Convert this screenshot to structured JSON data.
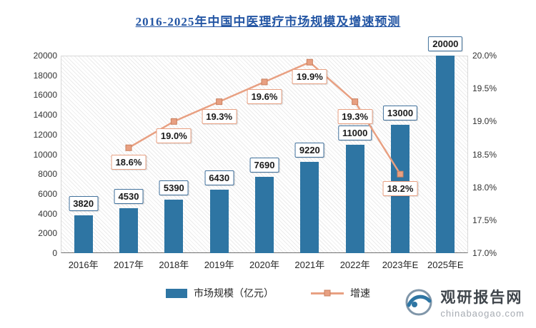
{
  "title": "2016-2025年中国中医理疗市场规模及增速预测",
  "chart_data": {
    "type": "bar",
    "subtype": "bar+line combo, dual axis",
    "categories": [
      "2016年",
      "2017年",
      "2018年",
      "2019年",
      "2020年",
      "2021年",
      "2022年",
      "2023年E",
      "2025年E"
    ],
    "series": [
      {
        "name": "市场规模（亿元）",
        "type": "bar",
        "axis": "left",
        "color": "#2e75a3",
        "values": [
          3820,
          4530,
          5390,
          6430,
          7690,
          9220,
          11000,
          13000,
          20000
        ]
      },
      {
        "name": "增速",
        "type": "line",
        "axis": "right",
        "color": "#e8a082",
        "x_indices": [
          1,
          2,
          3,
          4,
          5,
          6,
          7
        ],
        "values": [
          18.6,
          19.0,
          19.3,
          19.6,
          19.9,
          19.3,
          18.2
        ]
      }
    ],
    "bar_labels": [
      "3820",
      "4530",
      "5390",
      "6430",
      "7690",
      "9220",
      "11000",
      "13000",
      "20000"
    ],
    "line_labels": [
      "18.6%",
      "19.0%",
      "19.3%",
      "19.6%",
      "19.9%",
      "19.3%",
      "18.2%"
    ],
    "left_axis": {
      "min": 0,
      "max": 20000,
      "step": 2000,
      "ticks": [
        "0",
        "2000",
        "4000",
        "6000",
        "8000",
        "10000",
        "12000",
        "14000",
        "16000",
        "18000",
        "20000"
      ]
    },
    "right_axis": {
      "min": 17.0,
      "max": 20.0,
      "step": 0.5,
      "ticks": [
        "17.0%",
        "17.5%",
        "18.0%",
        "18.5%",
        "19.0%",
        "19.5%",
        "20.0%"
      ]
    },
    "legend_position": "bottom",
    "grid": false
  },
  "watermark": {
    "name": "观研报告网",
    "domain": "chinabaogao.com"
  }
}
